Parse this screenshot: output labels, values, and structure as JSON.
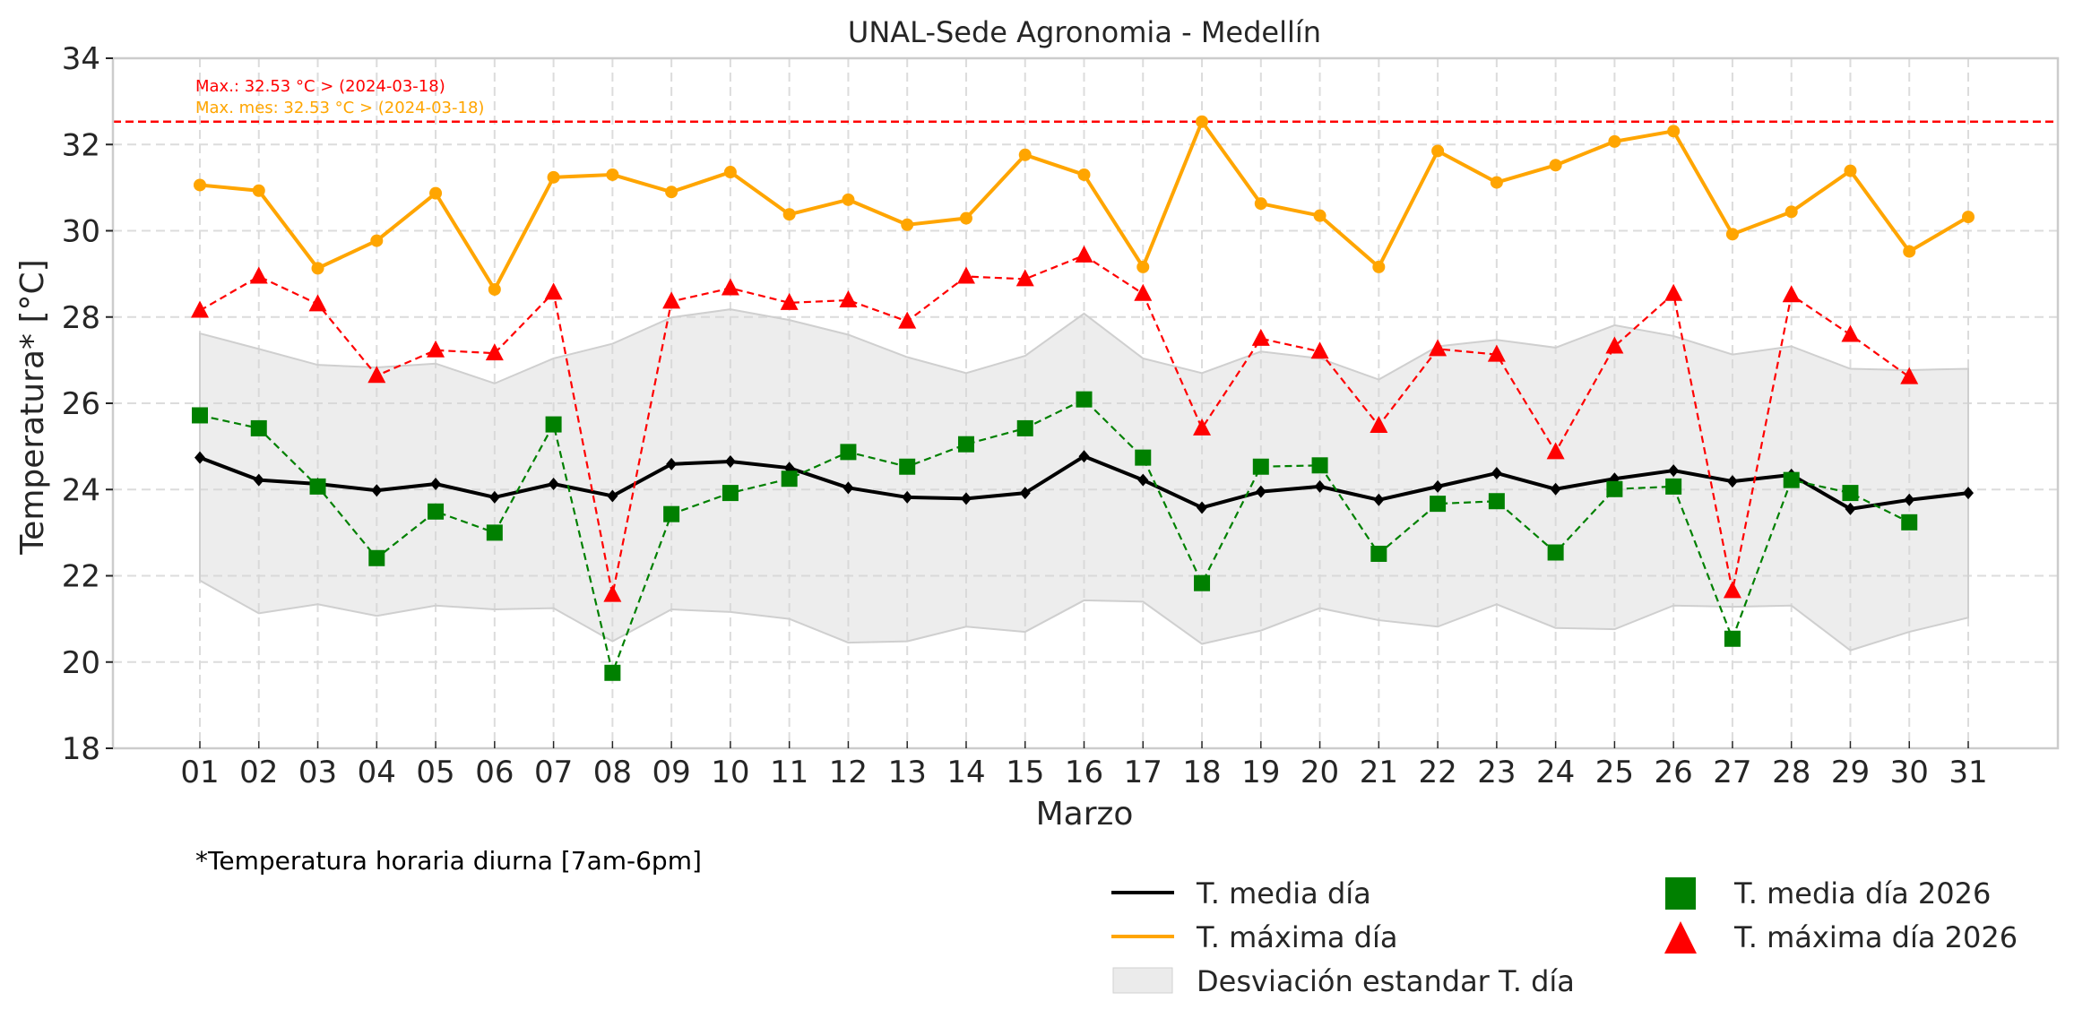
{
  "chart_data": {
    "type": "line",
    "title": "UNAL-Sede Agronomia - Medellín",
    "xlabel": "Marzo",
    "ylabel": "Temperatura* [°C]",
    "ylim": [
      18,
      34
    ],
    "yticks": [
      18,
      20,
      22,
      24,
      26,
      28,
      30,
      32,
      34
    ],
    "grid": true,
    "categories": [
      "01",
      "02",
      "03",
      "04",
      "05",
      "06",
      "07",
      "08",
      "09",
      "10",
      "11",
      "12",
      "13",
      "14",
      "15",
      "16",
      "17",
      "18",
      "19",
      "20",
      "21",
      "22",
      "23",
      "24",
      "25",
      "26",
      "27",
      "28",
      "29",
      "30",
      "31"
    ],
    "series": [
      {
        "name": "T. media día",
        "color": "#000000",
        "style": "solid",
        "marker": "diamond",
        "values": [
          24.74,
          24.22,
          24.13,
          23.98,
          24.13,
          23.82,
          24.13,
          23.85,
          24.59,
          24.65,
          24.5,
          24.04,
          23.82,
          23.79,
          23.92,
          24.77,
          24.22,
          23.58,
          23.95,
          24.07,
          23.76,
          24.07,
          24.38,
          24.01,
          24.25,
          24.44,
          24.19,
          24.34,
          23.55,
          23.76,
          23.92
        ]
      },
      {
        "name": "T. máxima día",
        "color": "#FFA500",
        "style": "solid",
        "marker": "circle",
        "values": [
          31.06,
          30.93,
          29.13,
          29.77,
          30.87,
          28.64,
          31.24,
          31.3,
          30.9,
          31.36,
          30.38,
          30.72,
          30.14,
          30.29,
          31.76,
          31.3,
          29.16,
          32.53,
          30.63,
          30.35,
          29.16,
          31.85,
          31.12,
          31.52,
          32.07,
          32.31,
          29.92,
          30.44,
          31.39,
          29.52,
          30.32
        ]
      },
      {
        "name": "T. media día 2026",
        "color": "#008000",
        "style": "dashed",
        "marker": "square",
        "values": [
          25.72,
          25.42,
          24.07,
          22.41,
          23.49,
          23.0,
          25.51,
          19.75,
          23.43,
          23.92,
          24.25,
          24.87,
          24.53,
          25.05,
          25.42,
          26.09,
          24.74,
          21.83,
          24.53,
          24.56,
          22.51,
          23.67,
          23.73,
          22.54,
          24.01,
          24.07,
          20.54,
          24.22,
          23.92,
          23.24,
          null
        ]
      },
      {
        "name": "T. máxima día 2026",
        "color": "#FF0000",
        "style": "dashed",
        "marker": "triangle",
        "values": [
          28.15,
          28.94,
          28.3,
          26.64,
          27.23,
          27.16,
          28.57,
          21.56,
          28.36,
          28.67,
          28.33,
          28.39,
          27.9,
          28.94,
          28.88,
          29.43,
          28.54,
          25.42,
          27.5,
          27.2,
          25.48,
          27.26,
          27.13,
          24.87,
          27.32,
          28.54,
          21.65,
          28.51,
          27.59,
          26.61,
          null
        ]
      }
    ],
    "band": {
      "name": "Desviación estandar T. día",
      "color": "#D3D3D3",
      "upper": [
        27.62,
        27.26,
        26.89,
        26.83,
        26.92,
        26.46,
        27.04,
        27.38,
        27.99,
        28.18,
        27.93,
        27.59,
        27.07,
        26.7,
        27.1,
        28.08,
        27.04,
        26.7,
        27.2,
        27.04,
        26.55,
        27.32,
        27.47,
        27.29,
        27.81,
        27.56,
        27.13,
        27.32,
        26.8,
        26.77,
        26.8
      ],
      "lower": [
        21.89,
        21.13,
        21.34,
        21.07,
        21.31,
        21.22,
        21.25,
        20.48,
        21.22,
        21.16,
        21.0,
        20.45,
        20.48,
        20.82,
        20.7,
        21.43,
        21.4,
        20.42,
        20.73,
        21.25,
        20.97,
        20.82,
        21.34,
        20.79,
        20.76,
        21.31,
        21.28,
        21.31,
        20.27,
        20.7,
        21.03
      ]
    },
    "hline": {
      "value": 32.53,
      "color": "#FF0000",
      "style": "dashed"
    },
    "annotations": [
      {
        "text": "Max.: 32.53 °C  >  (2024-03-18)",
        "color": "#FF0000"
      },
      {
        "text": "Max. mes: 32.53 °C  >  (2024-03-18)",
        "color": "#FFA500"
      }
    ],
    "footnote": "*Temperatura horaria diurna [7am-6pm]",
    "legend": {
      "placement": "bottom-right",
      "entries": [
        {
          "label": "T. media día",
          "kind": "line",
          "color": "#000000"
        },
        {
          "label": "T. máxima día",
          "kind": "line",
          "color": "#FFA500"
        },
        {
          "label": "Desviación estandar T. día",
          "kind": "patch",
          "color": "#D3D3D3"
        },
        {
          "label": "T. media día 2026",
          "kind": "square",
          "color": "#008000"
        },
        {
          "label": "T. máxima día 2026",
          "kind": "triangle",
          "color": "#FF0000"
        }
      ]
    }
  }
}
